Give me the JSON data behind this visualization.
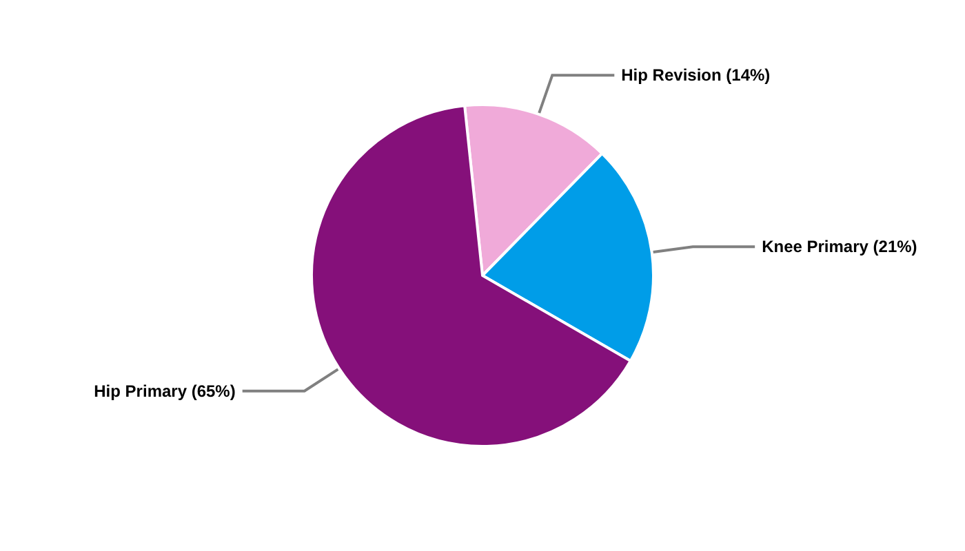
{
  "chart_data": {
    "type": "pie",
    "categories": [
      "Hip Revision (14%)",
      "Knee Primary (21%)",
      "Hip Primary (65%)"
    ],
    "values": [
      14,
      21,
      65
    ],
    "colors": [
      "#f0aad9",
      "#009de8",
      "#85107a"
    ],
    "legend": false
  }
}
